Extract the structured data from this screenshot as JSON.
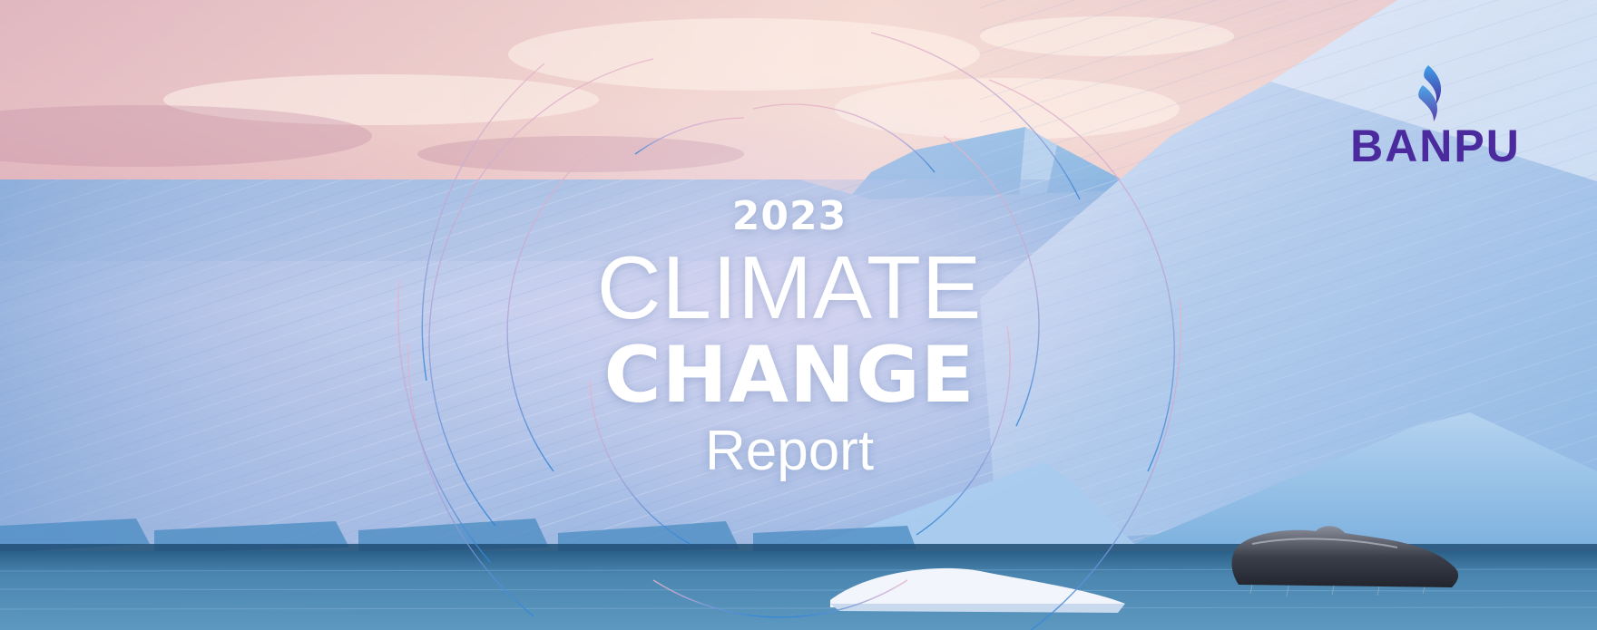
{
  "cover": {
    "year": "2023",
    "title_line1": "CLIMATE",
    "title_line2": "CHANGE",
    "title_line3": "Report"
  },
  "logo": {
    "text": "BANPU",
    "icon": "banpu-flame-icon",
    "color": "#4b2a9e",
    "accent": "#2e7fd6"
  },
  "background": {
    "subject": "iceberg-with-whale-tail",
    "sky_top": "#f3d6d6",
    "ice": "#b9cfec",
    "water": "#3f7ea8"
  }
}
